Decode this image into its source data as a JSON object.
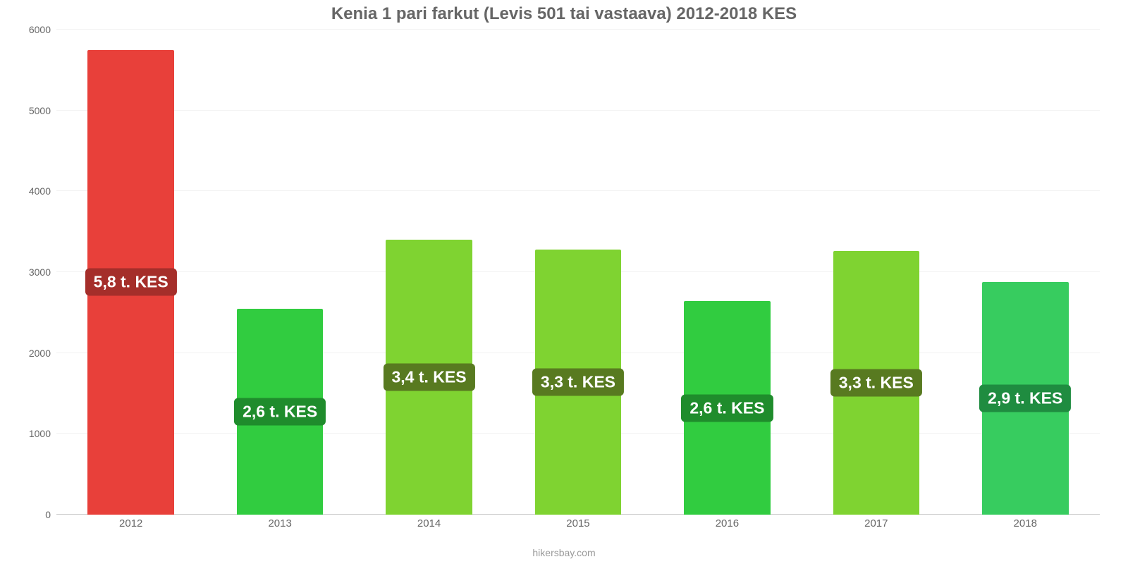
{
  "chart": {
    "type": "bar",
    "title": "Kenia 1 pari farkut (Levis 501 tai vastaava) 2012-2018 KES",
    "title_fontsize": 24,
    "title_color": "#666666",
    "background_color": "#ffffff",
    "grid_color": "#f2f2f2",
    "axis_color": "#cccccc",
    "tick_label_color": "#666666",
    "tick_fontsize": 14,
    "ylim_min": 0,
    "ylim_max": 6000,
    "ytick_step": 1000,
    "yticks": [
      0,
      1000,
      2000,
      3000,
      4000,
      5000,
      6000
    ],
    "bar_width_ratio": 0.58,
    "value_label_fontsize": 23,
    "value_label_color": "#ffffff",
    "categories": [
      "2012",
      "2013",
      "2014",
      "2015",
      "2016",
      "2017",
      "2018"
    ],
    "values": [
      5750,
      2550,
      3400,
      3280,
      2640,
      3260,
      2880
    ],
    "value_labels": [
      "5,8 t. KES",
      "2,6 t. KES",
      "3,4 t. KES",
      "3,3 t. KES",
      "2,6 t. KES",
      "3,3 t. KES",
      "2,9 t. KES"
    ],
    "bar_colors": [
      "#e8403a",
      "#31cc40",
      "#7fd331",
      "#7fd331",
      "#31cc40",
      "#7fd331",
      "#37cc5f"
    ],
    "label_bg_colors": [
      "#a52e2a",
      "#1f8c2c",
      "#587a20",
      "#587a20",
      "#1f8c2c",
      "#587a20",
      "#1f8c40"
    ],
    "footer": "hikersbay.com",
    "footer_color": "#999999",
    "footer_fontsize": 14
  }
}
